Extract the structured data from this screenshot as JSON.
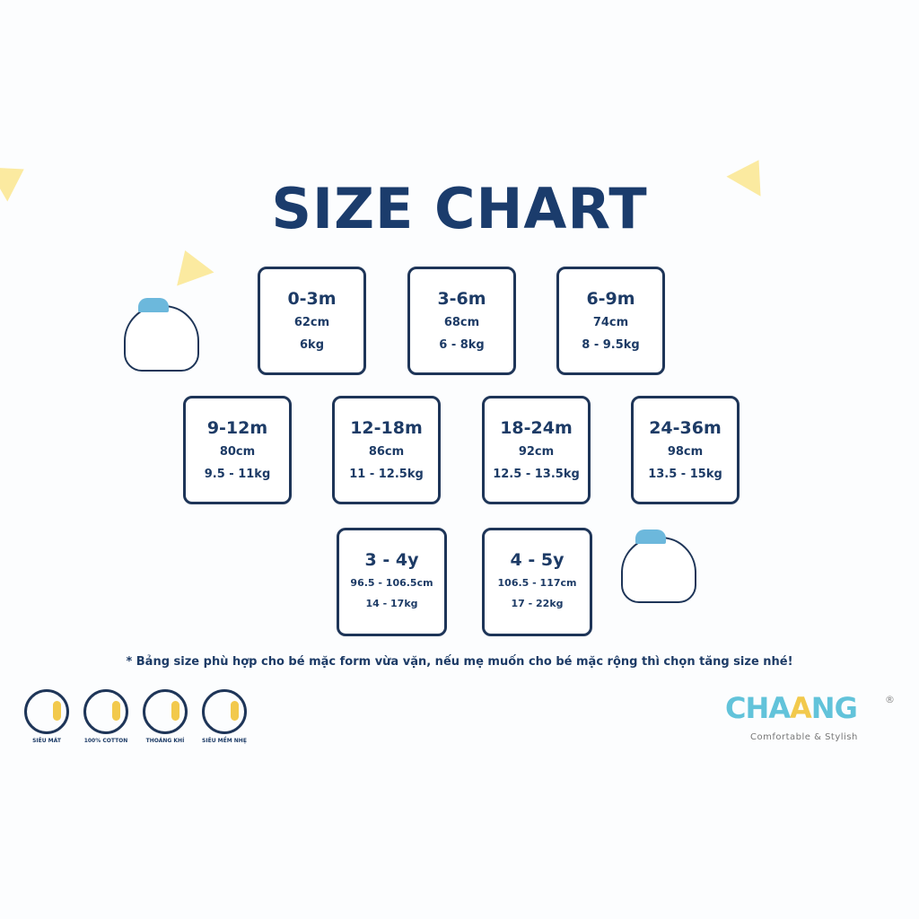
{
  "title": "SIZE CHART",
  "sizes": [
    {
      "age": "0-3m",
      "height": "62cm",
      "weight": "6kg"
    },
    {
      "age": "3-6m",
      "height": "68cm",
      "weight": "6 - 8kg"
    },
    {
      "age": "6-9m",
      "height": "74cm",
      "weight": "8 - 9.5kg"
    },
    {
      "age": "9-12m",
      "height": "80cm",
      "weight": "9.5 - 11kg"
    },
    {
      "age": "12-18m",
      "height": "86cm",
      "weight": "11 - 12.5kg"
    },
    {
      "age": "18-24m",
      "height": "92cm",
      "weight": "12.5 - 13.5kg"
    },
    {
      "age": "24-36m",
      "height": "98cm",
      "weight": "13.5 - 15kg"
    },
    {
      "age": "3 - 4y",
      "height": "96.5 - 106.5cm",
      "weight": "14 - 17kg"
    },
    {
      "age": "4 - 5y",
      "height": "106.5 - 117cm",
      "weight": "17 - 22kg"
    }
  ],
  "note": "* Bảng size phù hợp cho bé mặc form vừa vặn, nếu mẹ muốn cho bé mặc rộng thì chọn tăng size nhé!",
  "features": [
    {
      "label": "SIÊU MÁT",
      "icon": "cool-face-icon"
    },
    {
      "label": "100% COTTON",
      "icon": "cotton-face-icon"
    },
    {
      "label": "THOÁNG KHÍ",
      "icon": "breathable-face-icon"
    },
    {
      "label": "SIÊU MỀM NHẸ",
      "icon": "soft-face-icon"
    }
  ],
  "brand": {
    "name_a": "CHA",
    "name_b": "A",
    "name_c": "NG",
    "registered": "®",
    "tagline": "Comfortable & Stylish"
  },
  "colors": {
    "navy": "#1d3b66",
    "brand_blue": "#62c3da",
    "yellow": "#f2c94c"
  }
}
